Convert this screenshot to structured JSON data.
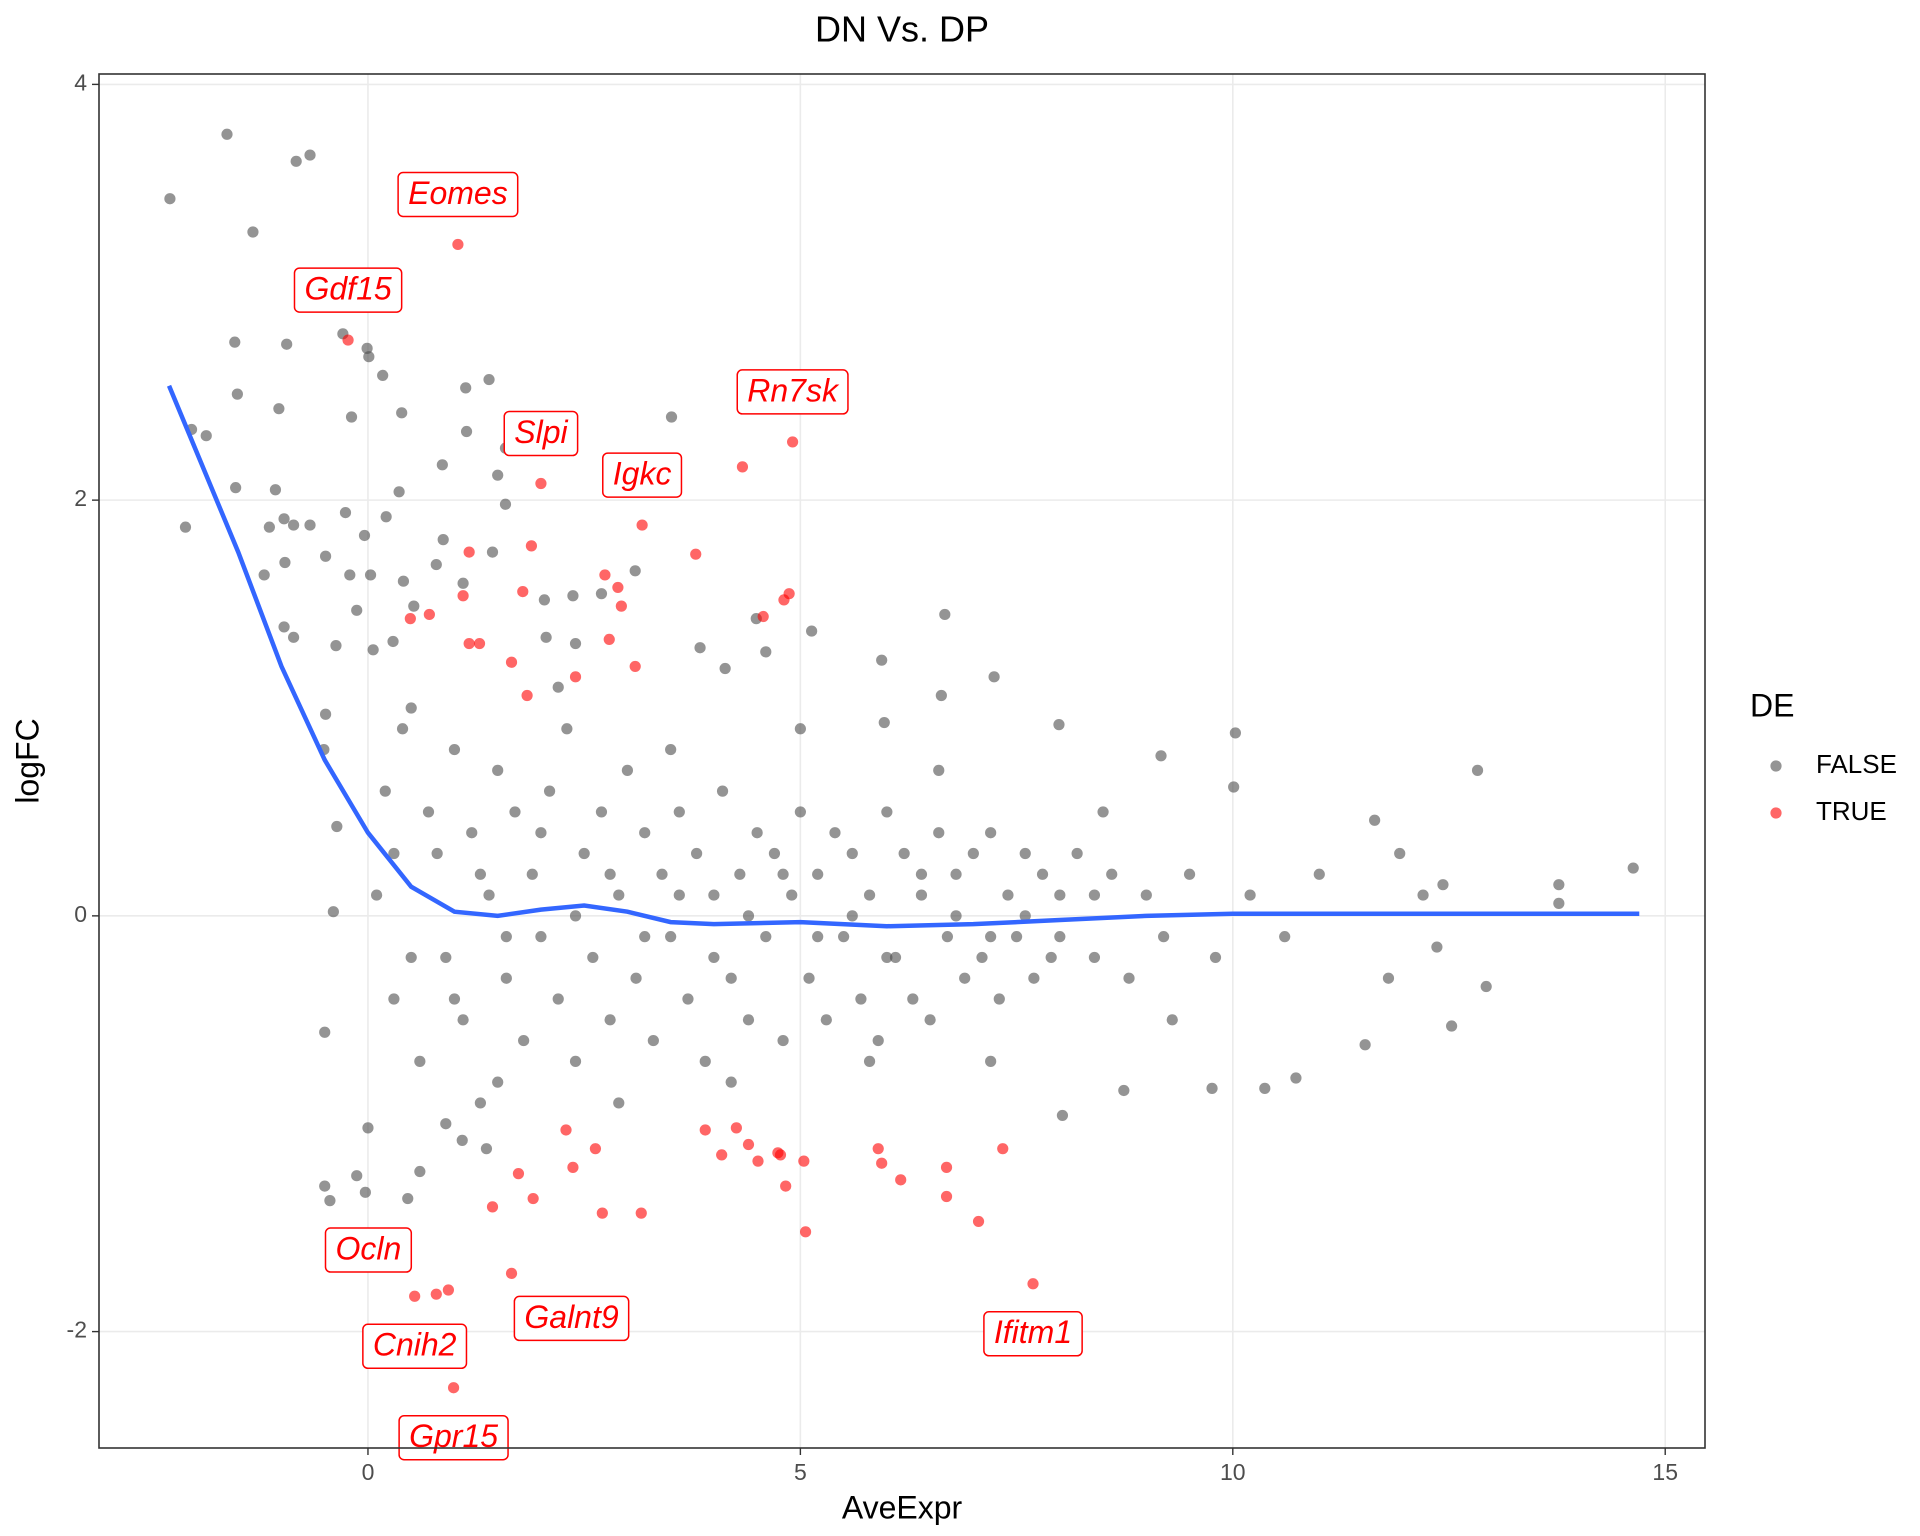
{
  "chart_data": {
    "type": "scatter",
    "title": "DN Vs. DP",
    "x_label": "AveExpr",
    "y_label": "logFC",
    "xlim": [
      -3.11,
      15.46
    ],
    "ylim": [
      -2.56,
      4.05
    ],
    "xticks": [
      0,
      5,
      10,
      15
    ],
    "yticks": [
      -2,
      0,
      2,
      4
    ],
    "grid": true,
    "legend_title": "DE",
    "legend_position": "right",
    "series": [
      {
        "name": "FALSE",
        "color": "#4d4d4d",
        "x": [
          -2.29,
          -1.63,
          -0.83,
          -0.67,
          -1.33,
          -1.54,
          -0.94,
          -0.29,
          -0.01,
          0.01,
          0.17,
          -1.51,
          -1.03,
          -0.19,
          0.39,
          1.13,
          1.4,
          -2.04,
          -1.87,
          1.14,
          3.51,
          1.59,
          0.86,
          1.5,
          -1.53,
          -1.07,
          0.36,
          1.59,
          -2.11,
          -1.14,
          -0.97,
          -0.86,
          -0.67,
          -0.26,
          0.21,
          -0.04,
          0.87,
          1.44,
          -0.49,
          -0.96,
          -0.21,
          0.03,
          0.41,
          0.79,
          1.1,
          -1.2,
          -0.13,
          0.53,
          2.04,
          2.37,
          2.7,
          3.09,
          4.49,
          6.67,
          5.13,
          -0.97,
          -0.86,
          -0.37,
          0.06,
          0.29,
          2.06,
          2.4,
          3.84,
          4.6,
          5.94,
          4.13,
          7.24,
          6.63,
          7.99,
          5.97,
          10.03,
          12.83,
          9.17,
          10.01,
          -0.49,
          -0.51,
          -0.36,
          14.63,
          13.77,
          13.77,
          12.93,
          12.36,
          12.43,
          11.93,
          11.64,
          -0.5,
          -0.44,
          -0.13,
          -0.03,
          0,
          0.46,
          0.6,
          1.09,
          1.37,
          8.03,
          8.74,
          9.76,
          10.37,
          10.73,
          11.53,
          12.53,
          -0.5,
          -0.4,
          0.2,
          0.3,
          0.5,
          0.6,
          0.8,
          0.9,
          1.0,
          1.1,
          1.2,
          1.3,
          1.4,
          1.5,
          1.6,
          1.7,
          1.8,
          1.9,
          2.0,
          2.1,
          2.2,
          2.3,
          2.4,
          2.5,
          2.6,
          2.7,
          2.8,
          2.9,
          3.0,
          3.1,
          3.2,
          3.3,
          3.4,
          3.5,
          3.6,
          3.7,
          3.8,
          3.9,
          4.0,
          4.1,
          4.2,
          4.3,
          4.4,
          4.5,
          4.6,
          4.7,
          4.8,
          4.9,
          5.0,
          5.1,
          5.2,
          5.3,
          5.4,
          5.5,
          5.6,
          5.7,
          5.8,
          5.9,
          6.0,
          6.1,
          6.2,
          6.3,
          6.4,
          6.5,
          6.6,
          6.7,
          6.8,
          6.9,
          7.0,
          7.1,
          7.2,
          7.3,
          7.4,
          7.5,
          7.6,
          7.7,
          7.8,
          7.9,
          8.0,
          8.2,
          8.4,
          8.6,
          8.8,
          9.0,
          9.2,
          9.5,
          9.8,
          10.2,
          10.6,
          0.1,
          0.3,
          0.5,
          0.7,
          1.0,
          1.3,
          1.6,
          2.0,
          2.4,
          2.8,
          3.2,
          3.6,
          4.0,
          4.4,
          4.8,
          5.2,
          5.6,
          6.0,
          6.4,
          6.8,
          7.2,
          7.6,
          8.0,
          8.4,
          0.4,
          0.9,
          1.5,
          2.2,
          2.9,
          3.5,
          4.2,
          5.0,
          5.8,
          6.6,
          7.2,
          8.5,
          9.3,
          11.0,
          11.8,
          12.2
        ],
        "values": [
          3.45,
          3.76,
          3.63,
          3.66,
          3.29,
          2.76,
          2.75,
          2.8,
          2.73,
          2.69,
          2.6,
          2.51,
          2.44,
          2.4,
          2.42,
          2.54,
          2.58,
          2.34,
          2.31,
          2.33,
          2.4,
          2.25,
          2.17,
          2.12,
          2.06,
          2.05,
          2.04,
          1.98,
          1.87,
          1.87,
          1.91,
          1.88,
          1.88,
          1.94,
          1.92,
          1.83,
          1.81,
          1.75,
          1.73,
          1.7,
          1.64,
          1.64,
          1.61,
          1.69,
          1.6,
          1.64,
          1.47,
          1.49,
          1.52,
          1.54,
          1.55,
          1.66,
          1.43,
          1.45,
          1.37,
          1.39,
          1.34,
          1.3,
          1.28,
          1.32,
          1.34,
          1.31,
          1.29,
          1.27,
          1.23,
          1.19,
          1.15,
          1.06,
          0.92,
          0.93,
          0.88,
          0.7,
          0.77,
          0.62,
          0.97,
          0.8,
          0.43,
          0.23,
          0.15,
          0.06,
          -0.34,
          -0.15,
          0.15,
          0.3,
          0.46,
          -1.3,
          -1.37,
          -1.25,
          -1.33,
          -1.02,
          -1.36,
          -1.23,
          -1.08,
          -1.12,
          -0.96,
          -0.84,
          -0.83,
          -0.83,
          -0.78,
          -0.62,
          -0.53,
          -0.56,
          0.02,
          0.6,
          -0.4,
          1.0,
          -0.7,
          0.3,
          -0.2,
          0.8,
          -0.5,
          0.4,
          -0.9,
          0.1,
          0.7,
          -0.3,
          0.5,
          -0.6,
          0.2,
          -0.1,
          0.6,
          -0.4,
          0.9,
          -0.7,
          0.3,
          -0.2,
          0.5,
          -0.5,
          0.1,
          0.7,
          -0.3,
          0.4,
          -0.6,
          0.2,
          -0.1,
          0.5,
          -0.4,
          0.3,
          -0.7,
          0.1,
          0.6,
          -0.3,
          0.2,
          -0.5,
          0.4,
          -0.1,
          0.3,
          -0.6,
          0.1,
          0.5,
          -0.3,
          0.2,
          -0.5,
          0.4,
          -0.1,
          0.3,
          -0.4,
          0.1,
          -0.6,
          0.5,
          -0.2,
          0.3,
          -0.4,
          0.1,
          -0.5,
          0.4,
          -0.1,
          0.2,
          -0.3,
          0.3,
          -0.2,
          0.4,
          -0.4,
          0.1,
          -0.1,
          0.3,
          -0.3,
          0.2,
          -0.2,
          0.1,
          0.3,
          -0.2,
          0.2,
          -0.3,
          0.1,
          -0.1,
          0.2,
          -0.2,
          0.1,
          -0.1,
          0.1,
          0.3,
          -0.2,
          0.5,
          -0.4,
          0.2,
          -0.1,
          0.4,
          0.0,
          0.2,
          -0.1,
          0.1,
          -0.2,
          0.0,
          0.2,
          -0.1,
          0.0,
          -0.2,
          0.2,
          0.0,
          -0.1,
          0.0,
          -0.1,
          0.1,
          0.9,
          -1.0,
          -0.8,
          1.1,
          -0.9,
          0.8,
          -0.8,
          0.9,
          -0.7,
          0.7,
          -0.7,
          0.5,
          -0.5,
          0.2,
          -0.3,
          0.1
        ]
      },
      {
        "name": "TRUE",
        "color": "#ff0000",
        "x": [
          1.04,
          -0.23,
          4.91,
          4.33,
          2.0,
          3.17,
          3.79,
          1.89,
          1.17,
          2.74,
          2.89,
          1.79,
          4.87,
          4.81,
          1.1,
          2.93,
          4.57,
          0.49,
          0.71,
          2.79,
          1.17,
          1.29,
          3.09,
          1.66,
          2.4,
          1.84,
          3.9,
          4.26,
          4.09,
          4.4,
          4.51,
          4.74,
          4.77,
          5.04,
          2.29,
          2.63,
          2.37,
          1.74,
          1.91,
          1.44,
          2.71,
          3.16,
          4.83,
          5.06,
          5.9,
          5.94,
          6.16,
          6.69,
          6.69,
          7.06,
          7.34,
          7.69,
          0.26,
          0.54,
          0.79,
          0.93,
          0.99,
          1.66
        ],
        "values": [
          3.23,
          2.77,
          2.28,
          2.16,
          2.08,
          1.88,
          1.74,
          1.78,
          1.75,
          1.64,
          1.58,
          1.56,
          1.55,
          1.52,
          1.54,
          1.49,
          1.44,
          1.43,
          1.45,
          1.33,
          1.31,
          1.31,
          1.2,
          1.22,
          1.15,
          1.06,
          -1.03,
          -1.02,
          -1.15,
          -1.1,
          -1.18,
          -1.14,
          -1.15,
          -1.18,
          -1.03,
          -1.12,
          -1.21,
          -1.24,
          -1.36,
          -1.4,
          -1.43,
          -1.43,
          -1.3,
          -1.52,
          -1.12,
          -1.19,
          -1.27,
          -1.21,
          -1.35,
          -1.47,
          -1.12,
          -1.77,
          -1.61,
          -1.83,
          -1.82,
          -1.8,
          -2.27,
          -1.72
        ],
        "labels": [
          "Eomes",
          "Gdf15",
          "Rn7sk",
          null,
          "Slpi",
          "Igkc",
          null,
          null,
          null,
          null,
          null,
          null,
          null,
          null,
          null,
          null,
          null,
          null,
          null,
          null,
          null,
          null,
          null,
          null,
          null,
          null,
          null,
          null,
          null,
          null,
          null,
          null,
          null,
          null,
          null,
          null,
          null,
          null,
          null,
          null,
          null,
          null,
          null,
          null,
          null,
          null,
          null,
          null,
          null,
          null,
          null,
          "Ifitm1",
          null,
          "Cnih2",
          null,
          "Ocln",
          "Gpr15",
          "Galnt9"
        ]
      }
    ],
    "trend": {
      "color": "#3366ff",
      "x": [
        -2.3,
        -1.5,
        -1.0,
        -0.5,
        0,
        0.5,
        1,
        1.5,
        2,
        2.5,
        3,
        3.5,
        4,
        5,
        6,
        7,
        8,
        9,
        10,
        12,
        14.7
      ],
      "values": [
        2.55,
        1.75,
        1.2,
        0.75,
        0.4,
        0.14,
        0.02,
        0,
        0.03,
        0.05,
        0.02,
        -0.03,
        -0.04,
        -0.03,
        -0.05,
        -0.04,
        -0.02,
        0,
        0.01,
        0.01,
        0.01
      ]
    }
  }
}
